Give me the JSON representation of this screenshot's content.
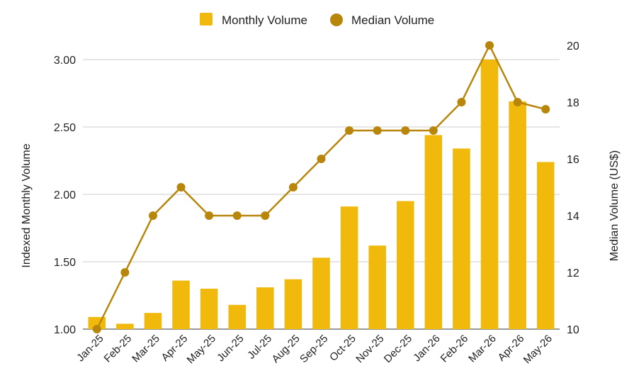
{
  "chart_data": {
    "type": "bar",
    "categories": [
      "Jan-25",
      "Feb-25",
      "Mar-25",
      "Apr-25",
      "May-25",
      "Jun-25",
      "Jul-25",
      "Aug-25",
      "Sep-25",
      "Oct-25",
      "Nov-25",
      "Dec-25",
      "Jan-26",
      "Feb-26",
      "Mar-26",
      "Apr-26",
      "May-26"
    ],
    "series": [
      {
        "name": "Monthly Volume",
        "type": "bar",
        "axis": "left",
        "color": "#F0B90B",
        "values": [
          1.09,
          1.04,
          1.12,
          1.36,
          1.3,
          1.18,
          1.31,
          1.37,
          1.53,
          1.91,
          1.62,
          1.95,
          2.44,
          2.34,
          3.0,
          2.69,
          2.24
        ]
      },
      {
        "name": "Median Volume",
        "type": "line",
        "axis": "right",
        "color": "#B8860B",
        "values": [
          10,
          12,
          14,
          15,
          14,
          14,
          14,
          15,
          16,
          17,
          17,
          17,
          17,
          18,
          20,
          18,
          17.75
        ]
      }
    ],
    "y_left": {
      "label": "Indexed Monthly Volume",
      "range": [
        1.0,
        3.0
      ],
      "ticks": [
        "1.00",
        "1.50",
        "2.00",
        "2.50",
        "3.00"
      ]
    },
    "y_right": {
      "label": "Median Volume (US$)",
      "range": [
        10,
        20
      ],
      "ticks": [
        "10",
        "12",
        "14",
        "16",
        "18",
        "20"
      ]
    },
    "grid": true,
    "legend": "top-center"
  }
}
